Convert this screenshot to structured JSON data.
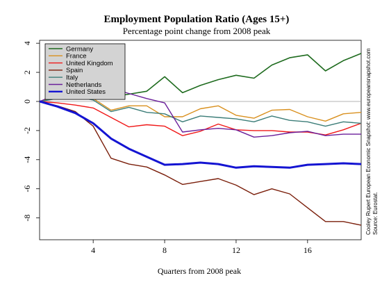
{
  "chart_data": {
    "type": "line",
    "title": "Employment Population Ratio (Ages 15+)",
    "subtitle": "Percentage point change from 2008 peak",
    "xlabel": "Quarters from 2008 peak",
    "ylabel": "",
    "xlim": [
      1,
      19
    ],
    "ylim": [
      -9.5,
      4.2
    ],
    "xticks": [
      4,
      8,
      12,
      16
    ],
    "yticks": [
      4,
      2,
      0,
      -2,
      -4,
      -6,
      -8
    ],
    "zero_line": true,
    "legend_position": "top-left",
    "legend_background": "#d3d3d3",
    "credit_lines": [
      "Cooley Rupert European Economic Snapshot: www.europeansnapshot.com",
      "Source: Eurostat."
    ],
    "x": [
      1,
      2,
      3,
      4,
      5,
      6,
      7,
      8,
      9,
      10,
      11,
      12,
      13,
      14,
      15,
      16,
      17,
      18,
      19
    ],
    "series": [
      {
        "name": "Germany",
        "color": "#1e6b1e",
        "width": 1.6,
        "values": [
          0,
          0.3,
          0.5,
          0.15,
          0.3,
          0.5,
          0.7,
          1.7,
          0.6,
          1.1,
          1.5,
          1.8,
          1.6,
          2.5,
          3.0,
          3.2,
          2.1,
          2.8,
          3.3
        ]
      },
      {
        "name": "France",
        "color": "#d9901e",
        "width": 1.4,
        "values": [
          0,
          0.35,
          0.5,
          0.2,
          -0.6,
          -0.3,
          -0.3,
          -1.05,
          -1.05,
          -0.5,
          -0.3,
          -0.95,
          -1.15,
          -0.6,
          -0.55,
          -1.05,
          -1.35,
          -0.85,
          -0.75
        ]
      },
      {
        "name": "United Kingdom",
        "color": "#f01818",
        "width": 1.4,
        "values": [
          0,
          -0.1,
          -0.25,
          -0.45,
          -1.1,
          -1.75,
          -1.6,
          -1.7,
          -2.35,
          -2.05,
          -1.55,
          -1.95,
          -2.0,
          -2.0,
          -2.1,
          -2.1,
          -2.3,
          -1.95,
          -1.5
        ]
      },
      {
        "name": "Spain",
        "color": "#7a1e0a",
        "width": 1.4,
        "values": [
          0,
          -0.3,
          -0.7,
          -1.7,
          -3.9,
          -4.3,
          -4.5,
          -5.05,
          -5.7,
          -5.5,
          -5.3,
          -5.75,
          -6.4,
          -6.0,
          -6.35,
          -7.3,
          -8.25,
          -8.25,
          -8.5
        ]
      },
      {
        "name": "Italy",
        "color": "#3c7d78",
        "width": 1.4,
        "values": [
          0,
          0.2,
          0.3,
          0.1,
          -0.7,
          -0.4,
          -0.75,
          -0.85,
          -1.4,
          -1.0,
          -1.1,
          -1.2,
          -1.4,
          -1.0,
          -1.3,
          -1.4,
          -1.7,
          -1.4,
          -1.5
        ]
      },
      {
        "name": "Netherlands",
        "color": "#6a1e9a",
        "width": 1.4,
        "values": [
          0,
          0.5,
          1.0,
          1.15,
          0.9,
          0.55,
          0.2,
          -0.1,
          -2.1,
          -1.95,
          -1.85,
          -1.95,
          -2.45,
          -2.35,
          -2.15,
          -2.05,
          -2.35,
          -2.25,
          -2.25
        ]
      },
      {
        "name": "United States",
        "color": "#1414d2",
        "width": 3.0,
        "values": [
          0,
          -0.35,
          -0.8,
          -1.5,
          -2.55,
          -3.25,
          -3.8,
          -4.35,
          -4.3,
          -4.2,
          -4.3,
          -4.55,
          -4.45,
          -4.5,
          -4.55,
          -4.35,
          -4.3,
          -4.25,
          -4.3
        ]
      }
    ]
  }
}
